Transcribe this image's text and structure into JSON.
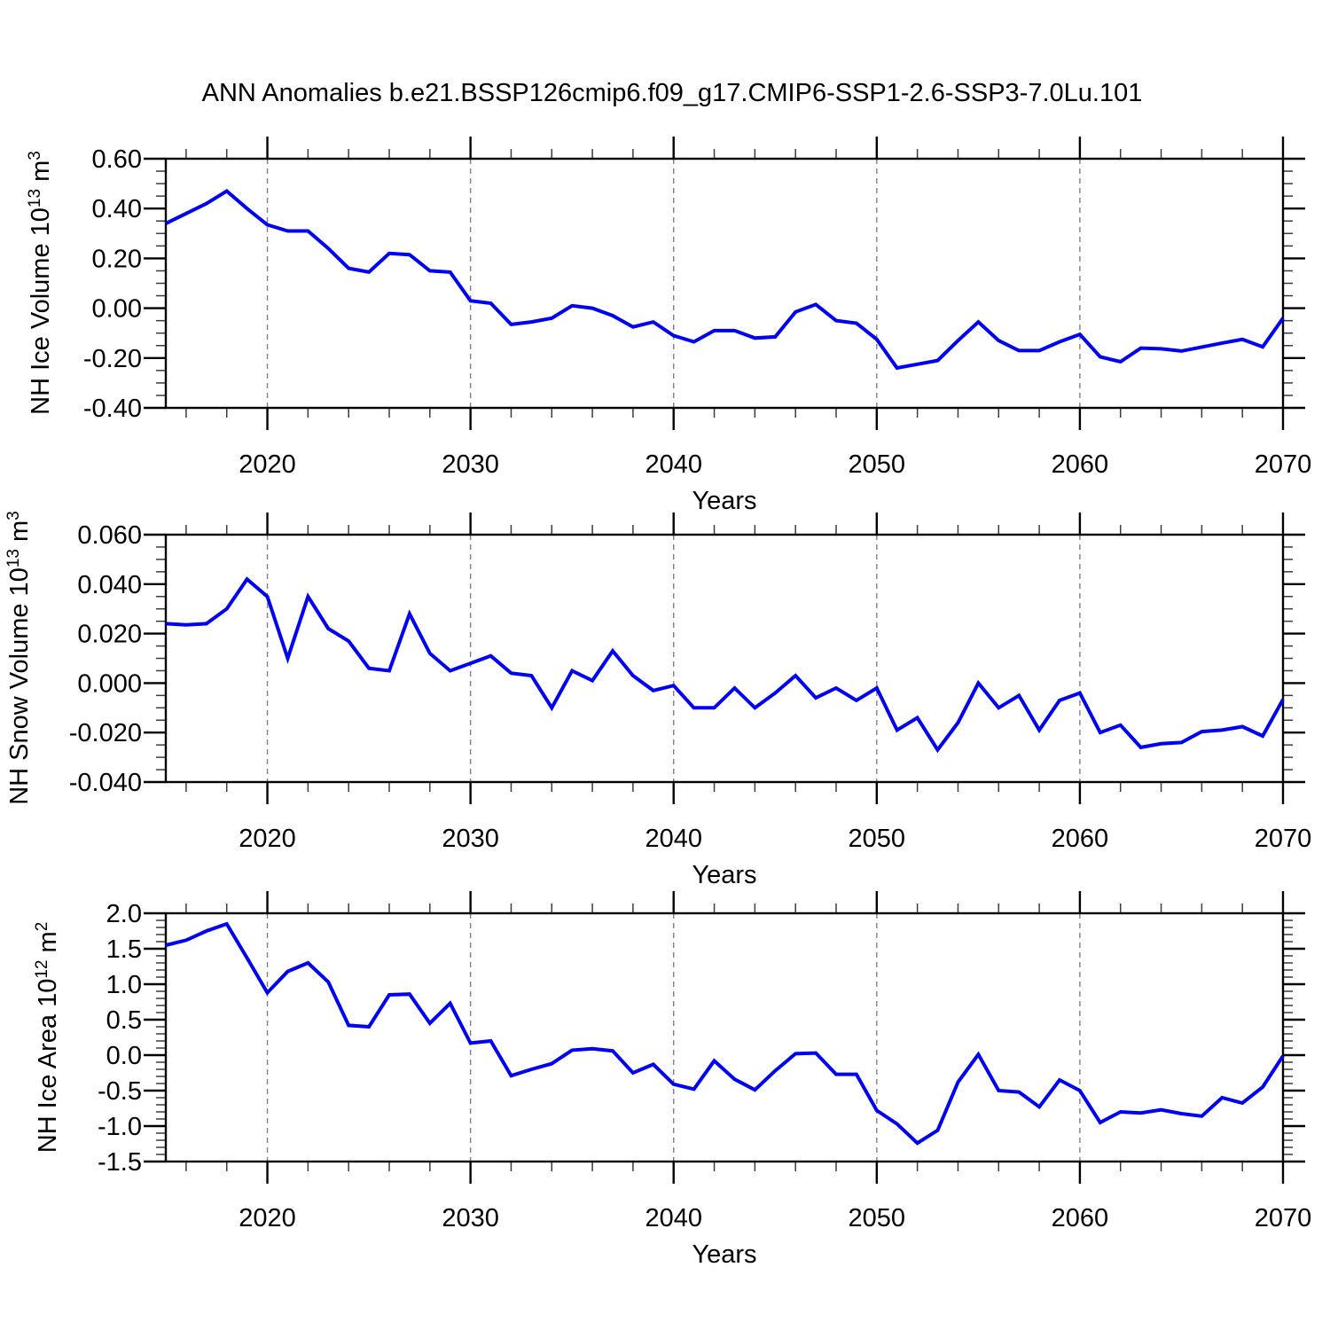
{
  "title": "ANN Anomalies b.e21.BSSP126cmip6.f09_g17.CMIP6-SSP1-2.6-SSP3-7.0Lu.101",
  "colors": {
    "line": "#0000f2",
    "frame": "#000000",
    "major_tick": "#000000",
    "minor_tick": "#3c3c3c",
    "grid": "#808080",
    "text": "#000000",
    "background": "#ffffff"
  },
  "chart_data": [
    {
      "type": "line",
      "panel": "top",
      "ylabel_parts": [
        "NH Ice Volume 10",
        "13",
        " m",
        "3"
      ],
      "xlabel": "Years",
      "ylim": [
        -0.4,
        0.6
      ],
      "yticks_major": [
        0.6,
        0.4,
        0.2,
        0.0,
        -0.2,
        -0.4
      ],
      "ytick_labels": [
        "0.60",
        "0.40",
        "0.20",
        "0.00",
        "-0.20",
        "-0.40"
      ],
      "ytick_minor_step": 0.05,
      "xlim": [
        2015,
        2070
      ],
      "xticks_major": [
        2020,
        2030,
        2040,
        2050,
        2060,
        2070
      ],
      "xtick_labels": [
        "2020",
        "2030",
        "2040",
        "2050",
        "2060",
        "2070"
      ],
      "xtick_minor_step": 2,
      "grid_at": [
        2020,
        2030,
        2040,
        2050,
        2060
      ],
      "grid_on": true,
      "legend": "none",
      "years": [
        2015,
        2016,
        2017,
        2018,
        2019,
        2020,
        2021,
        2022,
        2023,
        2024,
        2025,
        2026,
        2027,
        2028,
        2029,
        2030,
        2031,
        2032,
        2033,
        2034,
        2035,
        2036,
        2037,
        2038,
        2039,
        2040,
        2041,
        2042,
        2043,
        2044,
        2045,
        2046,
        2047,
        2048,
        2049,
        2050,
        2051,
        2052,
        2053,
        2054,
        2055,
        2056,
        2057,
        2058,
        2059,
        2060,
        2061,
        2062,
        2063,
        2064,
        2065,
        2066,
        2067,
        2068,
        2069,
        2070
      ],
      "values": [
        0.34,
        0.38,
        0.42,
        0.47,
        0.4,
        0.335,
        0.31,
        0.31,
        0.24,
        0.16,
        0.145,
        0.22,
        0.215,
        0.15,
        0.145,
        0.03,
        0.02,
        -0.065,
        -0.055,
        -0.04,
        0.01,
        0.0,
        -0.03,
        -0.075,
        -0.055,
        -0.11,
        -0.135,
        -0.09,
        -0.09,
        -0.12,
        -0.115,
        -0.015,
        0.015,
        -0.05,
        -0.06,
        -0.125,
        -0.24,
        -0.225,
        -0.21,
        -0.13,
        -0.055,
        -0.13,
        -0.17,
        -0.17,
        -0.135,
        -0.105,
        -0.195,
        -0.215,
        -0.16,
        -0.163,
        -0.172,
        -0.156,
        -0.14,
        -0.125,
        -0.155,
        -0.04
      ]
    },
    {
      "type": "line",
      "panel": "middle",
      "ylabel_parts": [
        "NH Snow Volume 10",
        "13",
        " m",
        "3"
      ],
      "xlabel": "Years",
      "ylim": [
        -0.04,
        0.06
      ],
      "yticks_major": [
        0.06,
        0.04,
        0.02,
        0.0,
        -0.02,
        -0.04
      ],
      "ytick_labels": [
        "0.060",
        "0.040",
        "0.020",
        "0.000",
        "-0.020",
        "-0.040"
      ],
      "ytick_minor_step": 0.005,
      "xlim": [
        2015,
        2070
      ],
      "xticks_major": [
        2020,
        2030,
        2040,
        2050,
        2060,
        2070
      ],
      "xtick_labels": [
        "2020",
        "2030",
        "2040",
        "2050",
        "2060",
        "2070"
      ],
      "xtick_minor_step": 2,
      "grid_at": [
        2020,
        2030,
        2040,
        2050,
        2060
      ],
      "grid_on": true,
      "legend": "none",
      "years": [
        2015,
        2016,
        2017,
        2018,
        2019,
        2020,
        2021,
        2022,
        2023,
        2024,
        2025,
        2026,
        2027,
        2028,
        2029,
        2030,
        2031,
        2032,
        2033,
        2034,
        2035,
        2036,
        2037,
        2038,
        2039,
        2040,
        2041,
        2042,
        2043,
        2044,
        2045,
        2046,
        2047,
        2048,
        2049,
        2050,
        2051,
        2052,
        2053,
        2054,
        2055,
        2056,
        2057,
        2058,
        2059,
        2060,
        2061,
        2062,
        2063,
        2064,
        2065,
        2066,
        2067,
        2068,
        2069,
        2070
      ],
      "values": [
        0.024,
        0.0235,
        0.024,
        0.03,
        0.042,
        0.035,
        0.01,
        0.035,
        0.022,
        0.017,
        0.006,
        0.005,
        0.028,
        0.012,
        0.005,
        0.008,
        0.011,
        0.004,
        0.003,
        -0.01,
        0.005,
        0.001,
        0.013,
        0.003,
        -0.003,
        -0.001,
        -0.01,
        -0.01,
        -0.002,
        -0.01,
        -0.004,
        0.003,
        -0.006,
        -0.002,
        -0.007,
        -0.002,
        -0.019,
        -0.014,
        -0.027,
        -0.016,
        0.0,
        -0.01,
        -0.005,
        -0.019,
        -0.007,
        -0.004,
        -0.02,
        -0.017,
        -0.026,
        -0.0245,
        -0.024,
        -0.0196,
        -0.019,
        -0.0176,
        -0.0214,
        -0.0066
      ]
    },
    {
      "type": "line",
      "panel": "bottom",
      "ylabel_parts": [
        "NH Ice Area 10",
        "12",
        " m",
        "2"
      ],
      "xlabel": "Years",
      "ylim": [
        -1.5,
        2.0
      ],
      "yticks_major": [
        2.0,
        1.5,
        1.0,
        0.5,
        0.0,
        -0.5,
        -1.0,
        -1.5
      ],
      "ytick_labels": [
        "2.0",
        "1.5",
        "1.0",
        "0.5",
        "0.0",
        "-0.5",
        "-1.0",
        "-1.5"
      ],
      "ytick_minor_step": 0.1,
      "xlim": [
        2015,
        2070
      ],
      "xticks_major": [
        2020,
        2030,
        2040,
        2050,
        2060,
        2070
      ],
      "xtick_labels": [
        "2020",
        "2030",
        "2040",
        "2050",
        "2060",
        "2070"
      ],
      "xtick_minor_step": 2,
      "grid_at": [
        2020,
        2030,
        2040,
        2050,
        2060
      ],
      "grid_on": true,
      "legend": "none",
      "years": [
        2015,
        2016,
        2017,
        2018,
        2019,
        2020,
        2021,
        2022,
        2023,
        2024,
        2025,
        2026,
        2027,
        2028,
        2029,
        2030,
        2031,
        2032,
        2033,
        2034,
        2035,
        2036,
        2037,
        2038,
        2039,
        2040,
        2041,
        2042,
        2043,
        2044,
        2045,
        2046,
        2047,
        2048,
        2049,
        2050,
        2051,
        2052,
        2053,
        2054,
        2055,
        2056,
        2057,
        2058,
        2059,
        2060,
        2061,
        2062,
        2063,
        2064,
        2065,
        2066,
        2067,
        2068,
        2069,
        2070
      ],
      "values": [
        1.55,
        1.62,
        1.75,
        1.85,
        1.37,
        0.88,
        1.18,
        1.3,
        1.03,
        0.42,
        0.4,
        0.85,
        0.86,
        0.45,
        0.73,
        0.17,
        0.2,
        -0.29,
        -0.2,
        -0.12,
        0.07,
        0.09,
        0.06,
        -0.25,
        -0.13,
        -0.41,
        -0.48,
        -0.08,
        -0.34,
        -0.49,
        -0.22,
        0.02,
        0.03,
        -0.27,
        -0.27,
        -0.78,
        -0.97,
        -1.24,
        -1.06,
        -0.38,
        0.01,
        -0.5,
        -0.52,
        -0.73,
        -0.35,
        -0.5,
        -0.95,
        -0.8,
        -0.815,
        -0.77,
        -0.825,
        -0.86,
        -0.6,
        -0.675,
        -0.45,
        -0.01
      ]
    }
  ]
}
